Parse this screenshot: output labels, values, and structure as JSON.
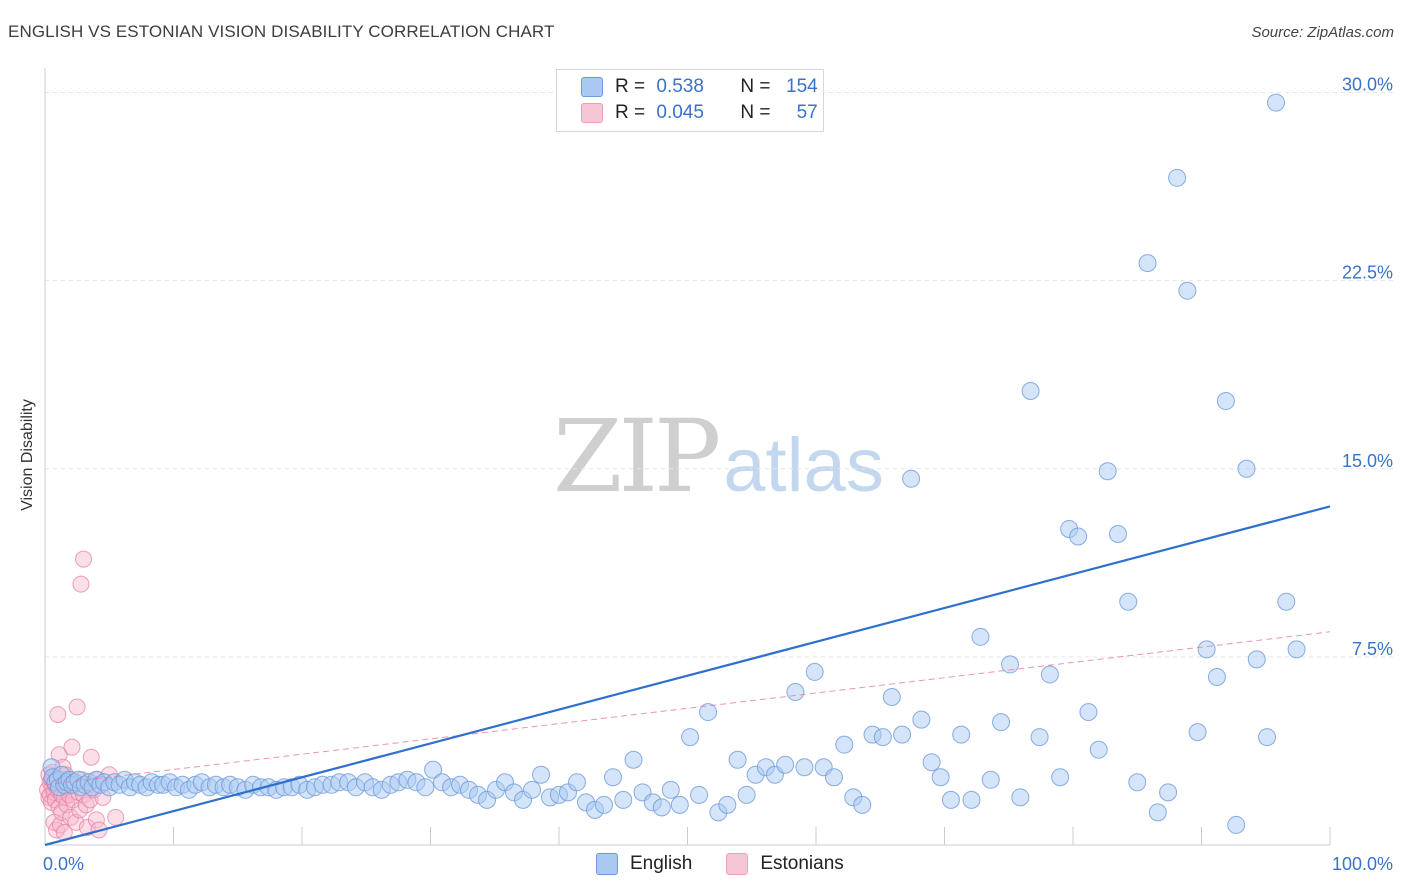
{
  "title": "ENGLISH VS ESTONIAN VISION DISABILITY CORRELATION CHART",
  "source": "Source: ZipAtlas.com",
  "watermark": {
    "zip": "ZIP",
    "atlas": "atlas"
  },
  "legend": {
    "rows": [
      {
        "r_label": "R = ",
        "r_value": "0.538",
        "n_label": "N = ",
        "n_value": "154"
      },
      {
        "r_label": "R = ",
        "r_value": "0.045",
        "n_label": "N = ",
        "n_value": "57"
      }
    ]
  },
  "colors": {
    "english_fill": "#a9c9f3",
    "english_stroke": "#6f9ad8",
    "english_line": "#2f6fce",
    "estonian_fill": "#f7b8cb",
    "estonian_stroke": "#e57b9d",
    "estonian_line": "#e57b9d",
    "grid": "#e5e5e5",
    "tick_label": "#3a72c9"
  },
  "chart_data": {
    "type": "scatter",
    "title": "ENGLISH VS ESTONIAN VISION DISABILITY CORRELATION CHART",
    "xlabel": "",
    "ylabel": "Vision Disability",
    "xlim": [
      0,
      100
    ],
    "ylim": [
      0,
      30.5
    ],
    "x_tick_labels": [
      "0.0%",
      "100.0%"
    ],
    "y_ticks": [
      7.5,
      15.0,
      22.5,
      30.0
    ],
    "y_tick_labels": [
      "7.5%",
      "15.0%",
      "22.5%",
      "30.0%"
    ],
    "grid": true,
    "legend_position": "bottom-center",
    "series": [
      {
        "name": "English",
        "r": 0.538,
        "n": 154,
        "trend": [
          [
            0,
            0.0
          ],
          [
            100,
            13.5
          ]
        ],
        "points": [
          [
            0.5,
            3.1
          ],
          [
            0.6,
            2.7
          ],
          [
            0.8,
            2.5
          ],
          [
            1.0,
            2.6
          ],
          [
            1.1,
            2.3
          ],
          [
            1.3,
            2.8
          ],
          [
            1.5,
            2.4
          ],
          [
            1.7,
            2.5
          ],
          [
            1.9,
            2.6
          ],
          [
            2.1,
            2.4
          ],
          [
            2.3,
            2.5
          ],
          [
            2.6,
            2.6
          ],
          [
            2.8,
            2.3
          ],
          [
            3.1,
            2.4
          ],
          [
            3.4,
            2.5
          ],
          [
            3.7,
            2.3
          ],
          [
            4.0,
            2.6
          ],
          [
            4.3,
            2.4
          ],
          [
            4.6,
            2.5
          ],
          [
            5.0,
            2.3
          ],
          [
            5.4,
            2.5
          ],
          [
            5.8,
            2.4
          ],
          [
            6.2,
            2.6
          ],
          [
            6.6,
            2.3
          ],
          [
            7.0,
            2.5
          ],
          [
            7.4,
            2.4
          ],
          [
            7.9,
            2.3
          ],
          [
            8.3,
            2.5
          ],
          [
            8.8,
            2.4
          ],
          [
            9.2,
            2.4
          ],
          [
            9.7,
            2.5
          ],
          [
            10.2,
            2.3
          ],
          [
            10.7,
            2.4
          ],
          [
            11.2,
            2.2
          ],
          [
            11.7,
            2.4
          ],
          [
            12.2,
            2.5
          ],
          [
            12.8,
            2.3
          ],
          [
            13.3,
            2.4
          ],
          [
            13.9,
            2.3
          ],
          [
            14.4,
            2.4
          ],
          [
            15.0,
            2.3
          ],
          [
            15.6,
            2.2
          ],
          [
            16.2,
            2.4
          ],
          [
            16.8,
            2.3
          ],
          [
            17.4,
            2.3
          ],
          [
            18.0,
            2.2
          ],
          [
            18.6,
            2.3
          ],
          [
            19.2,
            2.3
          ],
          [
            19.8,
            2.4
          ],
          [
            20.4,
            2.2
          ],
          [
            21.0,
            2.3
          ],
          [
            21.6,
            2.4
          ],
          [
            22.3,
            2.4
          ],
          [
            22.9,
            2.5
          ],
          [
            23.6,
            2.5
          ],
          [
            24.2,
            2.3
          ],
          [
            24.9,
            2.5
          ],
          [
            25.5,
            2.3
          ],
          [
            26.2,
            2.2
          ],
          [
            26.9,
            2.4
          ],
          [
            27.5,
            2.5
          ],
          [
            28.2,
            2.6
          ],
          [
            28.9,
            2.5
          ],
          [
            29.6,
            2.3
          ],
          [
            30.2,
            3.0
          ],
          [
            30.9,
            2.5
          ],
          [
            31.6,
            2.3
          ],
          [
            32.3,
            2.4
          ],
          [
            33.0,
            2.2
          ],
          [
            33.7,
            2.0
          ],
          [
            34.4,
            1.8
          ],
          [
            35.1,
            2.2
          ],
          [
            35.8,
            2.5
          ],
          [
            36.5,
            2.1
          ],
          [
            37.2,
            1.8
          ],
          [
            37.9,
            2.2
          ],
          [
            38.6,
            2.8
          ],
          [
            39.3,
            1.9
          ],
          [
            40.0,
            2.0
          ],
          [
            40.7,
            2.1
          ],
          [
            41.4,
            2.5
          ],
          [
            42.1,
            1.7
          ],
          [
            42.8,
            1.4
          ],
          [
            43.5,
            1.6
          ],
          [
            44.2,
            2.7
          ],
          [
            45.0,
            1.8
          ],
          [
            45.8,
            3.4
          ],
          [
            46.5,
            2.1
          ],
          [
            47.3,
            1.7
          ],
          [
            48.0,
            1.5
          ],
          [
            48.7,
            2.2
          ],
          [
            49.4,
            1.6
          ],
          [
            50.2,
            4.3
          ],
          [
            50.9,
            2.0
          ],
          [
            51.6,
            5.3
          ],
          [
            52.4,
            1.3
          ],
          [
            53.1,
            1.6
          ],
          [
            53.9,
            3.4
          ],
          [
            54.6,
            2.0
          ],
          [
            55.3,
            2.8
          ],
          [
            56.1,
            3.1
          ],
          [
            56.8,
            2.8
          ],
          [
            57.6,
            3.2
          ],
          [
            58.4,
            6.1
          ],
          [
            59.1,
            3.1
          ],
          [
            59.9,
            6.9
          ],
          [
            60.6,
            3.1
          ],
          [
            61.4,
            2.7
          ],
          [
            62.2,
            4.0
          ],
          [
            62.9,
            1.9
          ],
          [
            63.6,
            1.6
          ],
          [
            64.4,
            4.4
          ],
          [
            65.2,
            4.3
          ],
          [
            65.9,
            5.9
          ],
          [
            66.7,
            4.4
          ],
          [
            67.4,
            14.6
          ],
          [
            68.2,
            5.0
          ],
          [
            69.0,
            3.3
          ],
          [
            69.7,
            2.7
          ],
          [
            70.5,
            1.8
          ],
          [
            71.3,
            4.4
          ],
          [
            72.1,
            1.8
          ],
          [
            72.8,
            8.3
          ],
          [
            73.6,
            2.6
          ],
          [
            74.4,
            4.9
          ],
          [
            75.1,
            7.2
          ],
          [
            75.9,
            1.9
          ],
          [
            76.7,
            18.1
          ],
          [
            77.4,
            4.3
          ],
          [
            78.2,
            6.8
          ],
          [
            79.0,
            2.7
          ],
          [
            79.7,
            12.6
          ],
          [
            80.4,
            12.3
          ],
          [
            81.2,
            5.3
          ],
          [
            82.0,
            3.8
          ],
          [
            82.7,
            14.9
          ],
          [
            83.5,
            12.4
          ],
          [
            84.3,
            9.7
          ],
          [
            85.0,
            2.5
          ],
          [
            85.8,
            23.2
          ],
          [
            86.6,
            1.3
          ],
          [
            87.4,
            2.1
          ],
          [
            88.1,
            26.6
          ],
          [
            88.9,
            22.1
          ],
          [
            89.7,
            4.5
          ],
          [
            90.4,
            7.8
          ],
          [
            91.2,
            6.7
          ],
          [
            91.9,
            17.7
          ],
          [
            92.7,
            0.8
          ],
          [
            93.5,
            15.0
          ],
          [
            94.3,
            7.4
          ],
          [
            95.1,
            4.3
          ],
          [
            95.8,
            29.6
          ],
          [
            96.6,
            9.7
          ],
          [
            97.4,
            7.8
          ]
        ]
      },
      {
        "name": "Estonians",
        "r": 0.045,
        "n": 57,
        "trend": [
          [
            0,
            2.4
          ],
          [
            100,
            8.5
          ]
        ],
        "points": [
          [
            0.2,
            2.2
          ],
          [
            0.3,
            2.8
          ],
          [
            0.3,
            1.9
          ],
          [
            0.4,
            2.5
          ],
          [
            0.4,
            2.0
          ],
          [
            0.5,
            2.6
          ],
          [
            0.5,
            1.7
          ],
          [
            0.6,
            2.3
          ],
          [
            0.6,
            2.9
          ],
          [
            0.7,
            2.1
          ],
          [
            0.7,
            0.9
          ],
          [
            0.8,
            2.4
          ],
          [
            0.8,
            1.8
          ],
          [
            0.9,
            2.7
          ],
          [
            0.9,
            0.6
          ],
          [
            1.0,
            2.2
          ],
          [
            1.0,
            5.2
          ],
          [
            1.1,
            1.5
          ],
          [
            1.1,
            3.6
          ],
          [
            1.2,
            2.6
          ],
          [
            1.2,
            0.8
          ],
          [
            1.3,
            2.0
          ],
          [
            1.3,
            1.3
          ],
          [
            1.4,
            2.5
          ],
          [
            1.4,
            3.1
          ],
          [
            1.5,
            1.9
          ],
          [
            1.5,
            0.5
          ],
          [
            1.6,
            2.3
          ],
          [
            1.6,
            2.8
          ],
          [
            1.7,
            1.6
          ],
          [
            1.8,
            2.4
          ],
          [
            1.9,
            2.0
          ],
          [
            2.0,
            1.1
          ],
          [
            2.0,
            2.6
          ],
          [
            2.1,
            3.9
          ],
          [
            2.2,
            1.8
          ],
          [
            2.3,
            2.4
          ],
          [
            2.4,
            0.9
          ],
          [
            2.5,
            5.5
          ],
          [
            2.6,
            2.1
          ],
          [
            2.7,
            1.4
          ],
          [
            2.8,
            10.4
          ],
          [
            2.9,
            2.6
          ],
          [
            3.0,
            2.0
          ],
          [
            3.0,
            11.4
          ],
          [
            3.2,
            1.6
          ],
          [
            3.3,
            0.7
          ],
          [
            3.4,
            2.4
          ],
          [
            3.5,
            1.8
          ],
          [
            3.6,
            3.5
          ],
          [
            3.8,
            2.2
          ],
          [
            4.0,
            1.0
          ],
          [
            4.1,
            2.6
          ],
          [
            4.2,
            0.6
          ],
          [
            4.5,
            1.9
          ],
          [
            5.0,
            2.8
          ],
          [
            5.5,
            1.1
          ]
        ]
      }
    ]
  },
  "bottom_legend": [
    {
      "label": "English"
    },
    {
      "label": "Estonians"
    }
  ]
}
